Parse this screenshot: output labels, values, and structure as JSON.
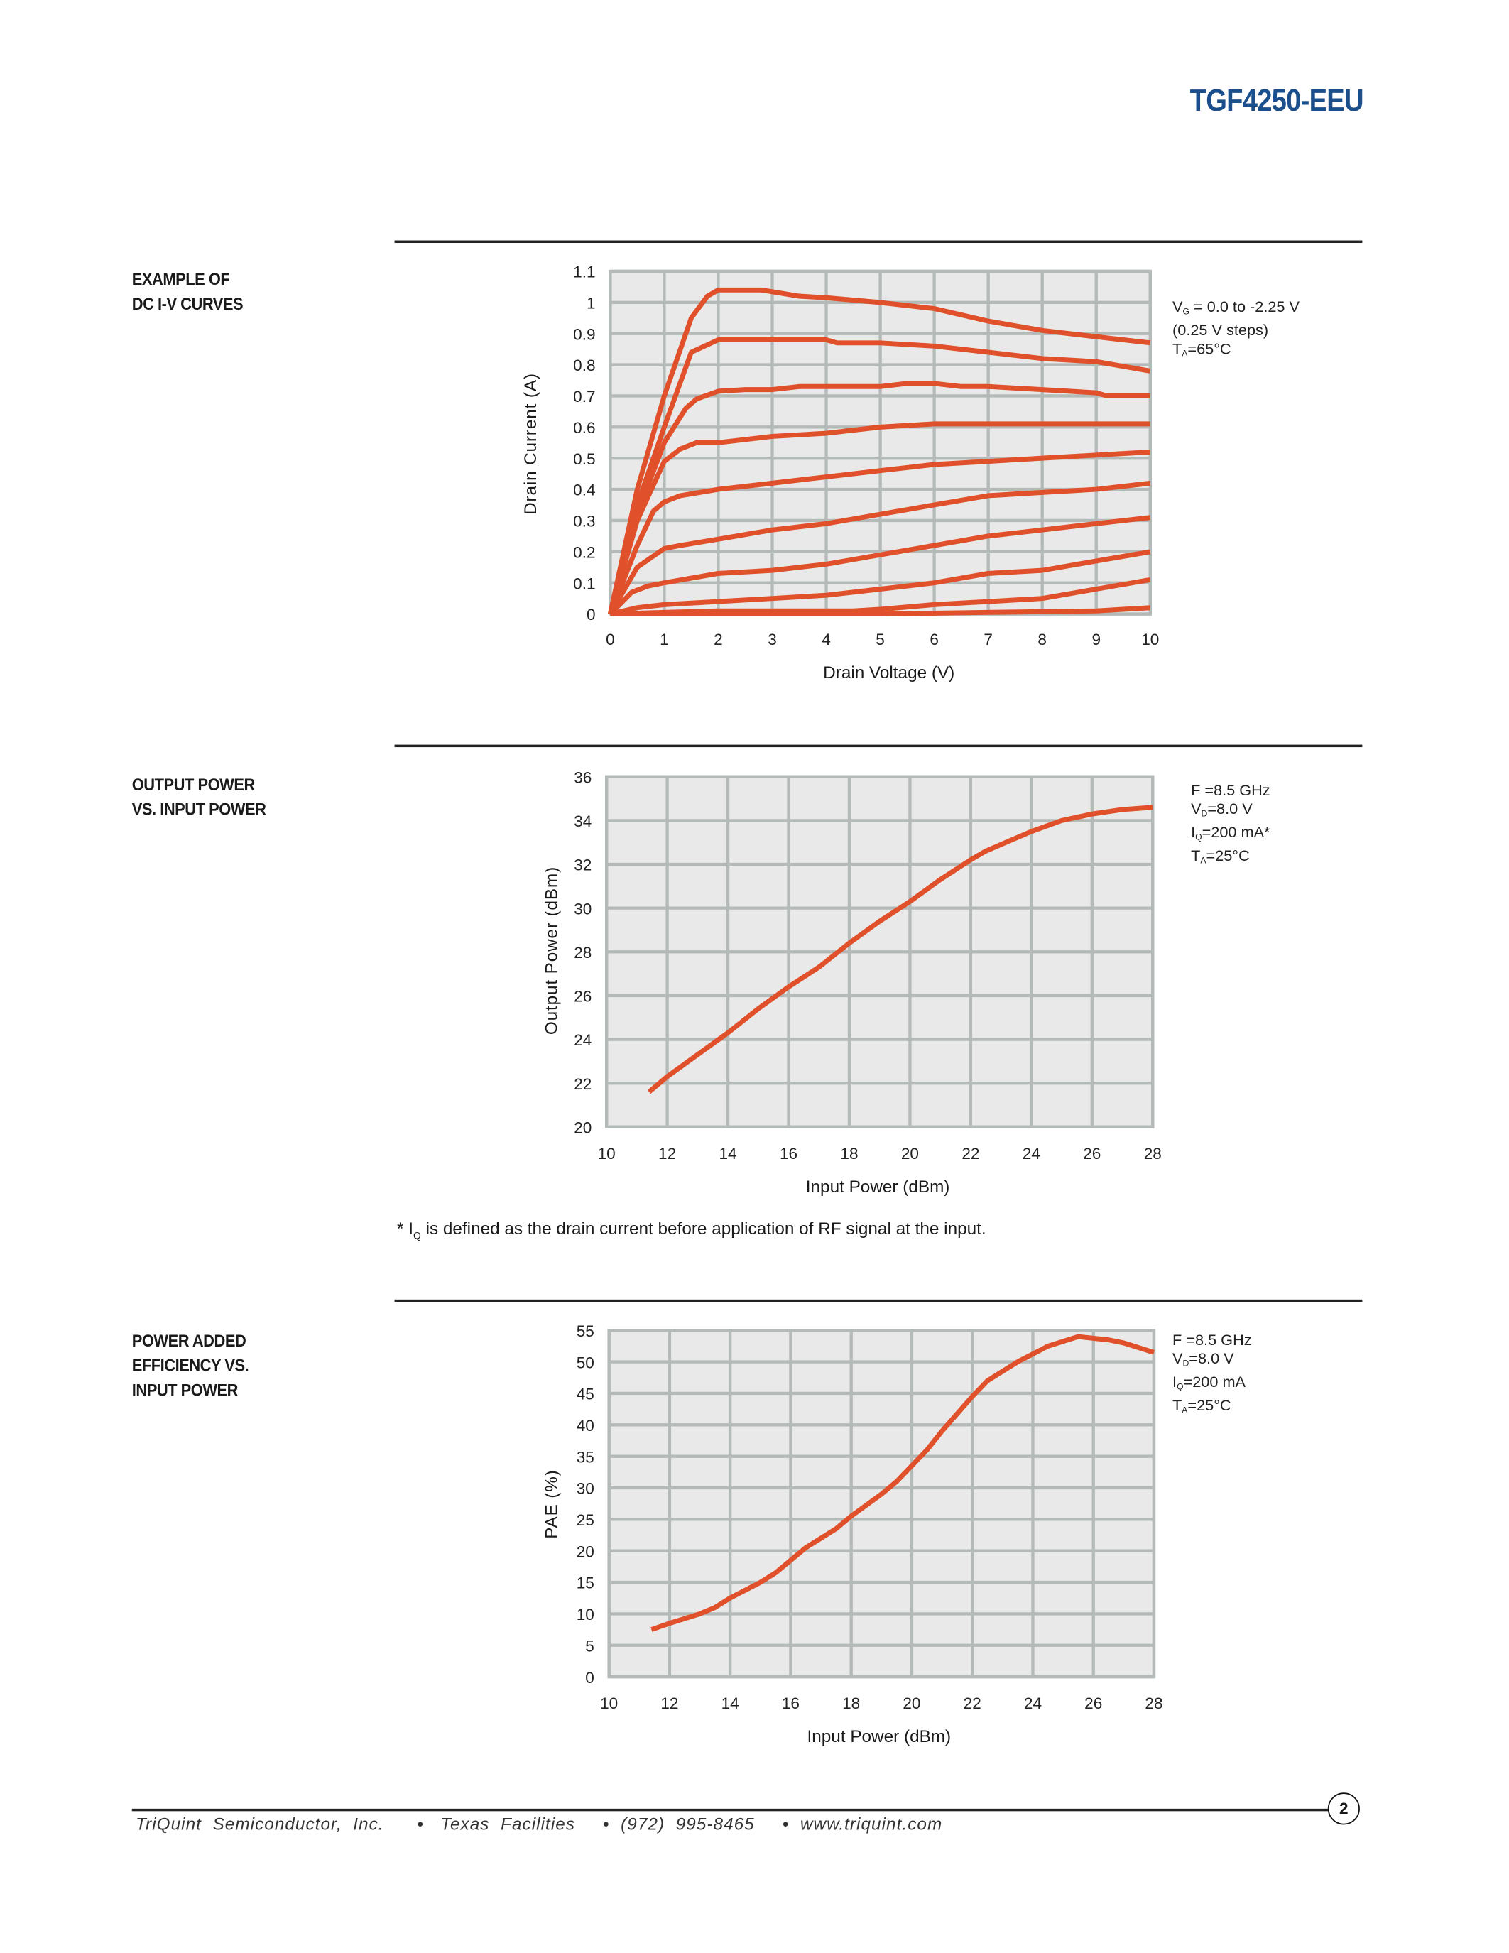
{
  "header": {
    "part_number": "TGF4250-EEU"
  },
  "sections": [
    {
      "label_lines": [
        "EXAMPLE OF",
        "DC I-V CURVES"
      ]
    },
    {
      "label_lines": [
        "OUTPUT POWER",
        "VS. INPUT POWER"
      ]
    },
    {
      "label_lines": [
        "POWER ADDED",
        "EFFICIENCY VS.",
        "INPUT POWER"
      ]
    }
  ],
  "colors": {
    "series": "#e0502a",
    "grid": "#b4bab8",
    "plot_bg": "#e9e9e9",
    "title": "#1a4f8b"
  },
  "chart_data": [
    {
      "type": "line",
      "xlabel": "Drain Voltage (V)",
      "ylabel": "Drain Current (A)",
      "xlim": [
        0,
        10
      ],
      "ylim": [
        0,
        1.1
      ],
      "xticks": [
        "0",
        "1",
        "2",
        "3",
        "4",
        "5",
        "6",
        "7",
        "8",
        "9",
        "10"
      ],
      "yticks": [
        "0",
        "0.1",
        "0.2",
        "0.3",
        "0.4",
        "0.5",
        "0.6",
        "0.7",
        "0.8",
        "0.9",
        "1",
        "1.1"
      ],
      "grid": true,
      "annotation": [
        {
          "main": "V",
          "sub": "G",
          "rest": " = 0.0 to -2.25 V"
        },
        {
          "main": "(0.25 V steps)",
          "sub": "",
          "rest": ""
        },
        {
          "main": "T",
          "sub": "A",
          "rest": "=65°C"
        }
      ],
      "series": [
        {
          "x": [
            0,
            0.5,
            1,
            1.5,
            1.8,
            2,
            2.8,
            3.5,
            4,
            5,
            6,
            7,
            8,
            9,
            10
          ],
          "y": [
            0,
            0.4,
            0.7,
            0.95,
            1.02,
            1.04,
            1.04,
            1.02,
            1.015,
            1.0,
            0.98,
            0.94,
            0.91,
            0.89,
            0.87
          ]
        },
        {
          "x": [
            0,
            0.5,
            1,
            1.5,
            2,
            3,
            4,
            4.2,
            5,
            6,
            7,
            8,
            9,
            10
          ],
          "y": [
            0,
            0.35,
            0.6,
            0.84,
            0.88,
            0.88,
            0.88,
            0.87,
            0.87,
            0.86,
            0.84,
            0.82,
            0.81,
            0.78
          ]
        },
        {
          "x": [
            0,
            0.5,
            1,
            1.4,
            1.6,
            2,
            2.5,
            3,
            3.5,
            5,
            5.5,
            6,
            6.5,
            7,
            8,
            9,
            9.2,
            10
          ],
          "y": [
            0,
            0.32,
            0.55,
            0.66,
            0.69,
            0.715,
            0.72,
            0.72,
            0.73,
            0.73,
            0.74,
            0.74,
            0.73,
            0.73,
            0.72,
            0.71,
            0.7,
            0.7
          ]
        },
        {
          "x": [
            0,
            0.5,
            1,
            1.3,
            1.6,
            2,
            3,
            4,
            5,
            6,
            7,
            10
          ],
          "y": [
            0,
            0.3,
            0.49,
            0.53,
            0.55,
            0.55,
            0.57,
            0.58,
            0.6,
            0.61,
            0.61,
            0.61
          ]
        },
        {
          "x": [
            0,
            0.5,
            0.8,
            1,
            1.3,
            2,
            3,
            4,
            5,
            6,
            7,
            8,
            9,
            10
          ],
          "y": [
            0,
            0.22,
            0.33,
            0.36,
            0.38,
            0.4,
            0.42,
            0.44,
            0.46,
            0.48,
            0.49,
            0.5,
            0.51,
            0.52
          ]
        },
        {
          "x": [
            0,
            0.5,
            1,
            1.3,
            2,
            3,
            4,
            5,
            6,
            7,
            8,
            9,
            10
          ],
          "y": [
            0,
            0.15,
            0.21,
            0.22,
            0.24,
            0.27,
            0.29,
            0.32,
            0.35,
            0.38,
            0.39,
            0.4,
            0.42
          ]
        },
        {
          "x": [
            0,
            0.4,
            0.7,
            1,
            2,
            3,
            4,
            5,
            6,
            7,
            8,
            9,
            10
          ],
          "y": [
            0,
            0.07,
            0.09,
            0.1,
            0.13,
            0.14,
            0.16,
            0.19,
            0.22,
            0.25,
            0.27,
            0.29,
            0.31
          ]
        },
        {
          "x": [
            0,
            0.5,
            1,
            2,
            3,
            4,
            5,
            6,
            7,
            8,
            9,
            10
          ],
          "y": [
            0,
            0.02,
            0.03,
            0.04,
            0.05,
            0.06,
            0.08,
            0.1,
            0.13,
            0.14,
            0.17,
            0.2
          ]
        },
        {
          "x": [
            0,
            1,
            2,
            4.5,
            5,
            6,
            7,
            8,
            9,
            10
          ],
          "y": [
            0,
            0.005,
            0.01,
            0.01,
            0.015,
            0.03,
            0.04,
            0.05,
            0.08,
            0.11
          ]
        },
        {
          "x": [
            0,
            5,
            7,
            9,
            9.5,
            10
          ],
          "y": [
            0,
            0,
            0.005,
            0.01,
            0.015,
            0.02
          ]
        }
      ]
    },
    {
      "type": "line",
      "xlabel": "Input Power (dBm)",
      "ylabel": "Output Power (dBm)",
      "xlim": [
        10,
        28
      ],
      "ylim": [
        20,
        36
      ],
      "xticks": [
        "10",
        "12",
        "14",
        "16",
        "18",
        "20",
        "22",
        "24",
        "26",
        "28"
      ],
      "yticks": [
        "20",
        "22",
        "24",
        "26",
        "28",
        "30",
        "32",
        "34",
        "36"
      ],
      "grid": true,
      "annotation": [
        {
          "main": "F =8.5 GHz",
          "sub": "",
          "rest": ""
        },
        {
          "main": "V",
          "sub": "D",
          "rest": "=8.0 V"
        },
        {
          "main": "I",
          "sub": "Q",
          "rest": "=200 mA*"
        },
        {
          "main": "T",
          "sub": "A",
          "rest": "=25°C"
        }
      ],
      "series": [
        {
          "x": [
            11.4,
            12,
            13,
            14,
            15,
            16,
            17,
            18,
            19,
            20,
            21,
            22,
            22.5,
            23,
            24,
            25,
            26,
            27,
            28
          ],
          "y": [
            21.6,
            22.3,
            23.3,
            24.3,
            25.4,
            26.4,
            27.3,
            28.4,
            29.4,
            30.3,
            31.3,
            32.2,
            32.6,
            32.9,
            33.5,
            34.0,
            34.3,
            34.5,
            34.6
          ]
        }
      ]
    },
    {
      "type": "line",
      "xlabel": "Input Power (dBm)",
      "ylabel": "PAE (%)",
      "xlim": [
        10,
        28
      ],
      "ylim": [
        0,
        55
      ],
      "xticks": [
        "10",
        "12",
        "14",
        "16",
        "18",
        "20",
        "22",
        "24",
        "26",
        "28"
      ],
      "yticks": [
        "0",
        "5",
        "10",
        "15",
        "20",
        "25",
        "30",
        "35",
        "40",
        "45",
        "50",
        "55"
      ],
      "grid": true,
      "annotation": [
        {
          "main": "F =8.5 GHz",
          "sub": "",
          "rest": ""
        },
        {
          "main": "V",
          "sub": "D",
          "rest": "=8.0 V"
        },
        {
          "main": "I",
          "sub": "Q",
          "rest": "=200 mA"
        },
        {
          "main": "T",
          "sub": "A",
          "rest": "=25°C"
        }
      ],
      "series": [
        {
          "x": [
            11.4,
            12,
            13,
            13.5,
            14,
            15,
            15.5,
            16,
            16.5,
            17.5,
            18,
            19,
            19.5,
            20,
            20.5,
            21,
            22,
            22.5,
            23.5,
            24.5,
            25.5,
            26.5,
            27,
            28
          ],
          "y": [
            7.5,
            8.5,
            10,
            11,
            12.5,
            15,
            16.5,
            18.5,
            20.5,
            23.5,
            25.5,
            29,
            31,
            33.5,
            36,
            39,
            44.5,
            47,
            50,
            52.5,
            54,
            53.5,
            53,
            51.5
          ]
        }
      ]
    }
  ],
  "footnote": {
    "prefix": "* I",
    "sub": "Q",
    "text": " is defined as the drain current before application of RF signal at the input."
  },
  "footer": {
    "company": "TriQuint  Semiconductor,  Inc.",
    "location": "Texas  Facilities",
    "phone": "(972)  995-8465",
    "website": "www.triquint.com",
    "page_number": "2"
  }
}
